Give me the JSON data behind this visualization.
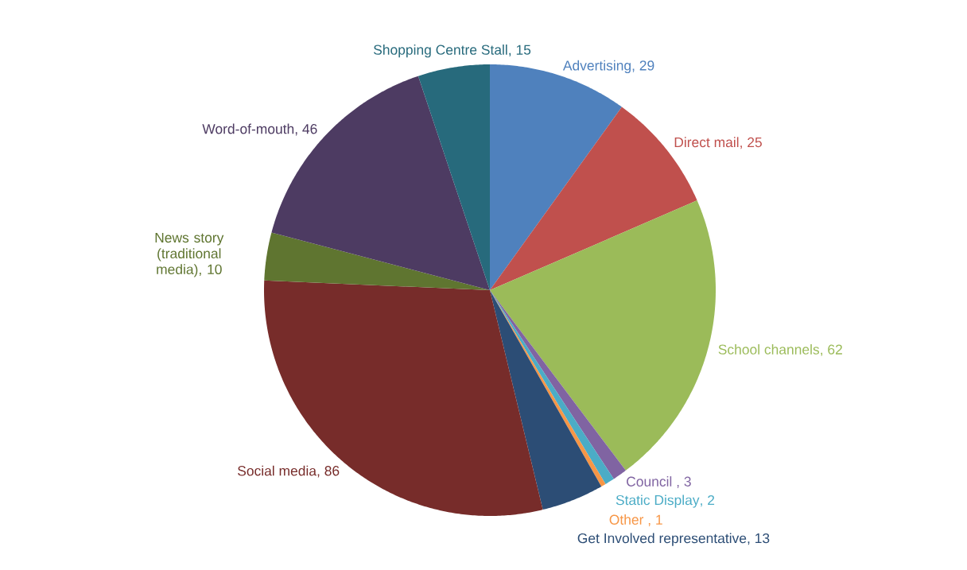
{
  "chart_data": {
    "type": "pie",
    "categories": [
      "Advertising",
      "Direct mail",
      "School channels",
      "Council ",
      "Static Display",
      "Other ",
      "Get Involved representative",
      "Social media",
      "News story (traditional media)",
      "Word-of-mouth",
      "Shopping Centre Stall"
    ],
    "values": [
      29,
      25,
      62,
      3,
      2,
      1,
      13,
      86,
      10,
      46,
      15
    ],
    "colors": [
      "#4f81bd",
      "#c0504d",
      "#9bbb59",
      "#8064a2",
      "#4bacc6",
      "#f79646",
      "#2c4d75",
      "#772c2a",
      "#5f7530",
      "#4d3b62",
      "#276a7c"
    ],
    "data_labels": true,
    "value_labels": [
      ", 29",
      ", 25",
      ", 62",
      ", 3",
      ", 2",
      ", 1",
      ", 13",
      ", 86",
      ", 10",
      ", 46",
      ", 15"
    ]
  }
}
